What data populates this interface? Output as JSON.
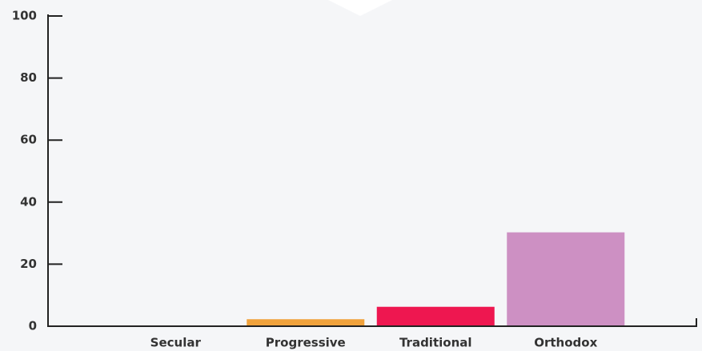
{
  "chart_data": {
    "type": "bar",
    "categories": [
      "Secular",
      "Progressive",
      "Traditional",
      "Orthodox"
    ],
    "values": [
      0,
      2,
      6,
      30
    ],
    "colors": [
      "#6f8fc9",
      "#f0a23c",
      "#ee1750",
      "#cd90c3"
    ],
    "ylim": [
      0,
      100
    ],
    "yticks": [
      0,
      20,
      40,
      60,
      80,
      100
    ]
  }
}
